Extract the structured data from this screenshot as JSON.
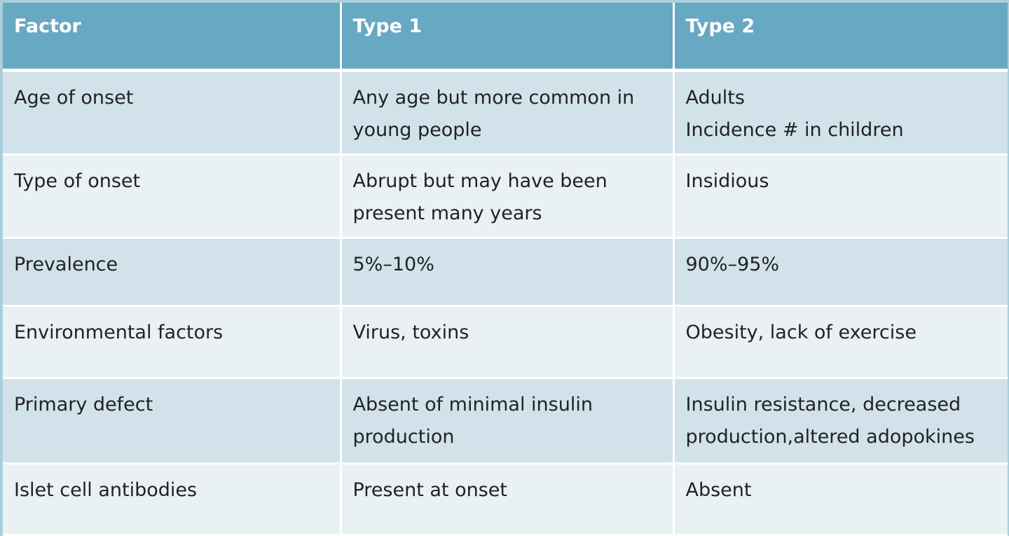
{
  "table": {
    "headers": [
      "Factor",
      "Type 1",
      "Type 2"
    ],
    "rows": [
      {
        "factor": "Age of onset",
        "type1": [
          "Any age but more common in",
          "young people"
        ],
        "type2": [
          "Adults",
          "Incidence # in children"
        ]
      },
      {
        "factor": "Type of onset",
        "type1": [
          "Abrupt but may have been",
          "present many years"
        ],
        "type2": [
          "Insidious"
        ]
      },
      {
        "factor": "Prevalence",
        "type1": [
          "5%–10%"
        ],
        "type2": [
          "90%–95%"
        ]
      },
      {
        "factor": "Environmental factors",
        "type1": [
          "Virus, toxins"
        ],
        "type2": [
          "Obesity, lack of exercise"
        ]
      },
      {
        "factor": "Primary defect",
        "type1": [
          "Absent of minimal insulin",
          "production"
        ],
        "type2": [
          "Insulin resistance, decreased",
          "production,altered adopokines"
        ]
      },
      {
        "factor": "Islet cell antibodies",
        "type1": [
          "Present at onset"
        ],
        "type2": [
          "Absent"
        ]
      }
    ]
  },
  "colors": {
    "header_bg": "#67a8c3",
    "row_dark": "#d2e2ea",
    "row_light": "#e9f1f5",
    "frame": "#a9cfdc"
  }
}
